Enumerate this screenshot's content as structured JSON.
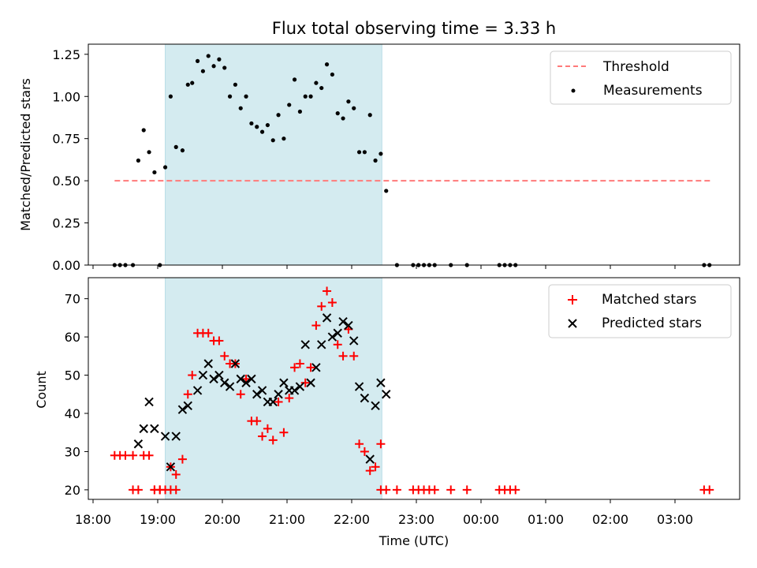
{
  "chart_data": [
    {
      "type": "scatter",
      "title": "Flux total observing time = 3.33 h",
      "ylabel": "Matched/Predicted stars",
      "xlabel": "",
      "ylim": [
        0,
        1.31
      ],
      "yticks": [
        "0.00",
        "0.25",
        "0.50",
        "0.75",
        "1.00",
        "1.25"
      ],
      "legend": {
        "position": "top-right",
        "entries": [
          "Threshold",
          "Measurements"
        ]
      },
      "shaded_region": {
        "x_start": "19:07",
        "x_end": "22:28",
        "color": "#d4ebf0"
      },
      "threshold": {
        "name": "Threshold",
        "y": 0.5,
        "x_start": "18:20",
        "x_end": "03:35",
        "color": "#ff7a7a"
      },
      "series": [
        {
          "name": "Measurements",
          "color": "#000000",
          "x": [
            "18:20",
            "18:25",
            "18:30",
            "18:37",
            "18:42",
            "18:47",
            "18:52",
            "18:57",
            "19:02",
            "19:07",
            "19:12",
            "19:17",
            "19:23",
            "19:28",
            "19:32",
            "19:37",
            "19:42",
            "19:47",
            "19:52",
            "19:57",
            "20:02",
            "20:07",
            "20:12",
            "20:17",
            "20:22",
            "20:27",
            "20:32",
            "20:37",
            "20:42",
            "20:47",
            "20:52",
            "20:57",
            "21:02",
            "21:07",
            "21:12",
            "21:17",
            "21:22",
            "21:27",
            "21:32",
            "21:37",
            "21:42",
            "21:47",
            "21:52",
            "21:57",
            "22:02",
            "22:07",
            "22:12",
            "22:17",
            "22:22",
            "22:27",
            "22:32",
            "22:42",
            "22:57",
            "23:02",
            "23:07",
            "23:12",
            "23:17",
            "23:32",
            "23:47",
            "00:17",
            "00:22",
            "00:27",
            "00:32",
            "03:27",
            "03:32"
          ],
          "y": [
            0,
            0,
            0,
            0,
            0.62,
            0.8,
            0.67,
            0.55,
            0,
            0.58,
            1.0,
            0.7,
            0.68,
            1.07,
            1.08,
            1.21,
            1.15,
            1.24,
            1.18,
            1.22,
            1.17,
            1.0,
            1.07,
            0.93,
            1.0,
            0.84,
            0.82,
            0.79,
            0.83,
            0.74,
            0.89,
            0.75,
            0.95,
            1.1,
            0.91,
            1.0,
            1.0,
            1.08,
            1.05,
            1.19,
            1.13,
            0.9,
            0.87,
            0.97,
            0.93,
            0.67,
            0.67,
            0.89,
            0.62,
            0.66,
            0.44,
            0,
            0,
            0,
            0,
            0,
            0,
            0,
            0,
            0,
            0,
            0,
            0,
            0,
            0
          ]
        }
      ]
    },
    {
      "type": "scatter",
      "title": "",
      "xlabel": "Time (UTC)",
      "ylabel": "Count",
      "ylim": [
        17.5,
        75.5
      ],
      "yticks": [
        "20",
        "30",
        "40",
        "50",
        "60",
        "70"
      ],
      "xticks": [
        "18:00",
        "19:00",
        "20:00",
        "21:00",
        "22:00",
        "23:00",
        "00:00",
        "01:00",
        "02:00",
        "03:00"
      ],
      "legend": {
        "position": "top-right",
        "entries": [
          "Matched stars",
          "Predicted stars"
        ]
      },
      "shaded_region": {
        "x_start": "19:07",
        "x_end": "22:28",
        "color": "#d4ebf0"
      },
      "series": [
        {
          "name": "Matched stars",
          "marker": "plus",
          "color": "#ff0000",
          "x": [
            "18:20",
            "18:25",
            "18:30",
            "18:37",
            "18:42",
            "18:47",
            "18:52",
            "18:57",
            "19:02",
            "19:07",
            "19:12",
            "19:17",
            "19:23",
            "19:28",
            "19:32",
            "19:37",
            "19:42",
            "19:47",
            "19:52",
            "19:57",
            "20:02",
            "20:07",
            "20:12",
            "20:17",
            "20:22",
            "20:27",
            "20:32",
            "20:37",
            "20:42",
            "20:47",
            "20:52",
            "20:57",
            "21:02",
            "21:07",
            "21:12",
            "21:17",
            "21:22",
            "21:27",
            "21:32",
            "21:37",
            "21:42",
            "21:47",
            "21:52",
            "21:57",
            "22:02",
            "22:07",
            "22:12",
            "22:17",
            "22:22",
            "22:27",
            "22:32",
            "22:42",
            "22:57",
            "23:02",
            "23:07",
            "23:12",
            "23:17",
            "23:32",
            "23:47",
            "00:17",
            "00:22",
            "00:27",
            "00:32",
            "03:27",
            "03:32",
            "18:37",
            "18:57",
            "19:02",
            "19:12",
            "19:17",
            "22:27"
          ],
          "y": [
            29,
            29,
            29,
            29,
            20,
            29,
            29,
            20,
            20,
            20,
            26,
            24,
            28,
            45,
            50,
            61,
            61,
            61,
            59,
            59,
            55,
            53,
            53,
            45,
            49,
            38,
            38,
            34,
            36,
            33,
            43,
            35,
            44,
            52,
            53,
            48,
            52,
            63,
            68,
            72,
            69,
            58,
            55,
            62,
            55,
            32,
            30,
            25,
            26,
            32,
            20,
            20,
            20,
            20,
            20,
            20,
            20,
            20,
            20,
            20,
            20,
            20,
            20,
            20,
            20,
            20,
            20,
            20,
            20,
            20,
            20
          ]
        },
        {
          "name": "Predicted stars",
          "marker": "x",
          "color": "#000000",
          "x": [
            "18:42",
            "18:47",
            "18:52",
            "18:57",
            "19:07",
            "19:12",
            "19:17",
            "19:23",
            "19:28",
            "19:37",
            "19:42",
            "19:47",
            "19:52",
            "19:57",
            "20:02",
            "20:07",
            "20:12",
            "20:17",
            "20:22",
            "20:27",
            "20:32",
            "20:37",
            "20:42",
            "20:47",
            "20:52",
            "20:57",
            "21:02",
            "21:07",
            "21:12",
            "21:17",
            "21:22",
            "21:27",
            "21:32",
            "21:37",
            "21:42",
            "21:47",
            "21:52",
            "21:57",
            "22:02",
            "22:07",
            "22:12",
            "22:17",
            "22:22",
            "22:27",
            "22:32"
          ],
          "y": [
            32,
            36,
            43,
            36,
            34,
            26,
            34,
            41,
            42,
            46,
            50,
            53,
            49,
            50,
            48,
            47,
            53,
            49,
            48,
            49,
            45,
            46,
            43,
            43,
            45,
            48,
            46,
            46,
            47,
            58,
            48,
            52,
            58,
            65,
            60,
            61,
            64,
            63,
            59,
            47,
            44,
            28,
            42,
            48,
            45
          ]
        }
      ]
    }
  ]
}
